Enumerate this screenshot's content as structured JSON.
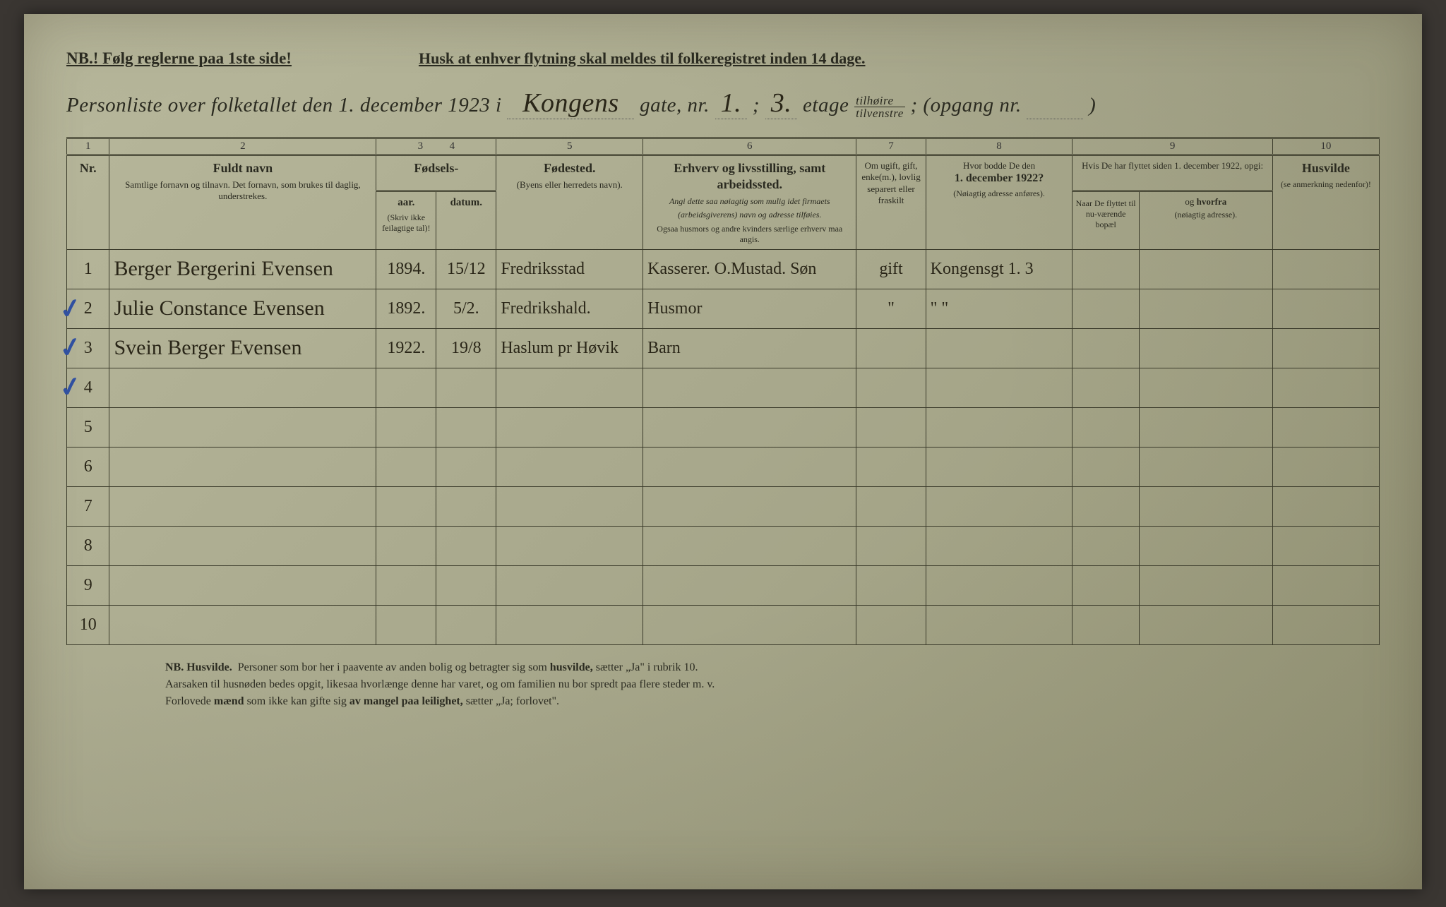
{
  "notices": {
    "left": "NB.! Følg reglerne paa 1ste side!",
    "right": "Husk at enhver flytning skal meldes til folkeregistret inden 14 dage."
  },
  "title": {
    "prefix": "Personliste over folketallet den 1. december 1923 i",
    "street_hand": "Kongens",
    "gate_label": "gate, nr.",
    "nr_hand": "1.",
    "semicolon": ";",
    "etage_hand": "3.",
    "etage_label": "etage",
    "fraction_top": "tilhøire",
    "fraction_bot": "tilvenstre",
    "opgang": "; (opgang nr.",
    "opgang_close": ")"
  },
  "col_numbers": [
    "1",
    "2",
    "3",
    "4",
    "5",
    "6",
    "7",
    "8",
    "9",
    "10"
  ],
  "headers": {
    "nr": "Nr.",
    "name_main": "Fuldt navn",
    "name_sub": "Samtlige fornavn og tilnavn. Det fornavn, som brukes til daglig, understrekes.",
    "fodsels": "Fødsels-",
    "aar": "aar.",
    "datum": "datum.",
    "aar_sub": "(Skriv ikke feilagtige tal)!",
    "fodested_main": "Fødested.",
    "fodested_sub": "(Byens eller herredets navn).",
    "erhverv_main": "Erhverv og livsstilling, samt arbeidssted.",
    "erhverv_sub": "Angi dette saa nøiagtig som mulig idet firmaets (arbeidsgiverens) navn og adresse tilføies.",
    "erhverv_sub2": "Ogsaa husmors og andre kvinders særlige erhverv maa angis.",
    "civil": "Om ugift, gift, enke(m.), lovlig separert eller fraskilt",
    "bodde_main": "Hvor bodde De den",
    "bodde_date": "1. december 1922?",
    "bodde_sub": "(Nøiagtig adresse anføres).",
    "flyttet_top": "Hvis De har flyttet siden 1. december 1922, opgi:",
    "naar": "Naar De flyttet til nu-værende bopæl",
    "hvorfra": "og hvorfra (nøiagtig adresse).",
    "husvilde_main": "Husvilde",
    "husvilde_sub": "(se anmerkning nedenfor)!"
  },
  "rows": [
    {
      "nr": "1",
      "name": "Berger Bergerini Evensen",
      "aar": "1894.",
      "datum": "15/12",
      "fodested": "Fredriksstad",
      "erhverv": "Kasserer. O.Mustad. Søn",
      "civil": "gift",
      "bodde": "Kongensgt 1. 3",
      "naar": "",
      "hvorfra": "",
      "husvilde": ""
    },
    {
      "nr": "2",
      "name": "Julie Constance Evensen",
      "aar": "1892.",
      "datum": "5/2.",
      "fodested": "Fredrikshald.",
      "erhverv": "Husmor",
      "civil": "\"",
      "bodde": "\"        \"",
      "naar": "",
      "hvorfra": "",
      "husvilde": ""
    },
    {
      "nr": "3",
      "name": "Svein Berger Evensen",
      "aar": "1922.",
      "datum": "19/8",
      "fodested": "Haslum pr Høvik",
      "erhverv": "Barn",
      "civil": "",
      "bodde": "",
      "naar": "",
      "hvorfra": "",
      "husvilde": ""
    }
  ],
  "empty_rows": [
    "4",
    "5",
    "6",
    "7",
    "8",
    "9",
    "10"
  ],
  "footer": {
    "line1_a": "NB.  Husvilde.",
    "line1_b": "Personer som bor her i paavente av anden bolig og betragter sig som",
    "line1_c": "husvilde,",
    "line1_d": "sætter „Ja\" i rubrik 10.",
    "line2": "Aarsaken til husnøden bedes opgit, likesaa hvorlænge denne har varet, og om familien nu bor spredt paa flere steder m. v.",
    "line3_a": "Forlovede",
    "line3_b": "mænd",
    "line3_c": "som ikke kan gifte sig",
    "line3_d": "av mangel paa leilighet,",
    "line3_e": "sætter „Ja; forlovet\"."
  },
  "styling": {
    "paper_bg": "#a8a88c",
    "ink": "#2a2618",
    "blue_check": "#3050a0",
    "border": "#3a3a2a"
  }
}
